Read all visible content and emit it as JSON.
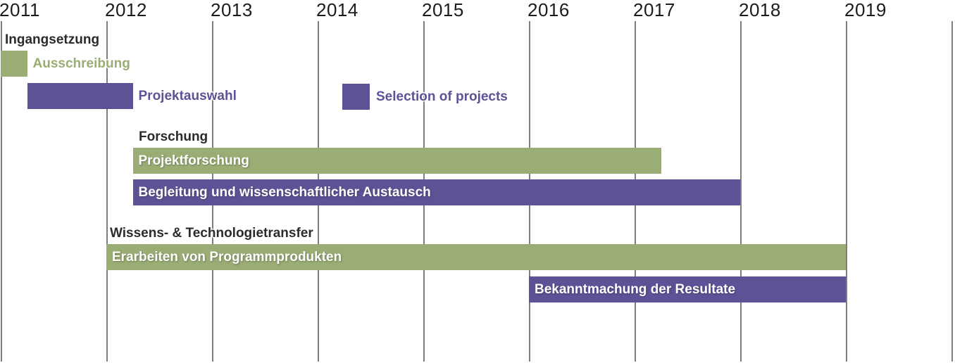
{
  "colors": {
    "green": "#9aad74",
    "purple": "#5f5196",
    "grid": "#7d7d7d",
    "axis_text": "#1c1c1c",
    "heading_text": "#2b2b28",
    "bar_text": "#ffffff",
    "background": "#ffffff"
  },
  "chart_data": {
    "type": "bar",
    "subtype": "gantt-timeline",
    "title": "",
    "xlabel": "",
    "ylabel": "",
    "x_ticks": [
      "2011",
      "2012",
      "2013",
      "2014",
      "2015",
      "2016",
      "2017",
      "2018",
      "2019"
    ],
    "x_range": [
      2011,
      2020
    ],
    "grid": "vertical-only",
    "unlabeled_final_gridline": true,
    "legend": {
      "position": "top-center",
      "entries": [
        {
          "label": "Selection of projects",
          "color_key": "purple"
        }
      ]
    },
    "groups": [
      {
        "header": "Ingangsetzung",
        "tasks": [
          {
            "label": "Ausschreibung",
            "start": 2011.0,
            "end": 2011.25,
            "color_key": "green",
            "label_placement": "right",
            "label_color_key": "green"
          },
          {
            "label": "Projektauswahl",
            "start": 2011.25,
            "end": 2012.25,
            "color_key": "purple",
            "label_placement": "right",
            "label_color_key": "purple"
          }
        ]
      },
      {
        "header": "Forschung",
        "tasks": [
          {
            "label": "Projektforschung",
            "start": 2012.25,
            "end": 2017.25,
            "color_key": "green",
            "label_placement": "inside",
            "label_color_key": "white"
          },
          {
            "label": "Begleitung und wissenschaftlicher Austausch",
            "start": 2012.25,
            "end": 2018.0,
            "color_key": "purple",
            "label_placement": "inside",
            "label_color_key": "white"
          }
        ]
      },
      {
        "header": "Wissens- & Technologietransfer",
        "tasks": [
          {
            "label": "Erarbeiten von Programmprodukten",
            "start": 2012.0,
            "end": 2019.0,
            "color_key": "green",
            "label_placement": "inside",
            "label_color_key": "white"
          },
          {
            "label": "Bekanntmachung der Resultate",
            "start": 2016.0,
            "end": 2019.0,
            "color_key": "purple",
            "label_placement": "inside",
            "label_color_key": "white"
          }
        ]
      }
    ]
  }
}
